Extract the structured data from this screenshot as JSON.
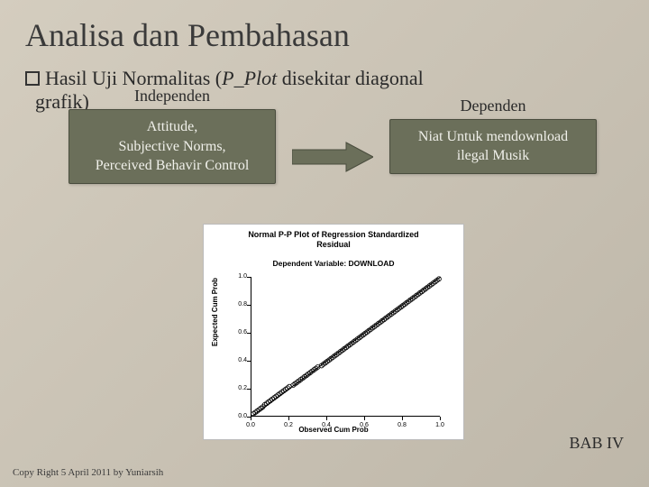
{
  "title": "Analisa dan Pembahasan",
  "subtitle": {
    "prefix": "Hasil Uji Normalitas  (",
    "italic": "P_Plot",
    "suffix": " disekitar diagonal",
    "line2": "grafik)"
  },
  "labels": {
    "independen": "Independen",
    "dependen": "Dependen"
  },
  "box_left": {
    "l1": "Attitude,",
    "l2": "Subjective Norms,",
    "l3": "Perceived Behavir Control"
  },
  "box_right": {
    "l1": "Niat Untuk mendownload",
    "l2": "ilegal Musik"
  },
  "arrow": {
    "fill": "#6b6f5a",
    "stroke": "#4a4d3e"
  },
  "chart": {
    "type": "scatter-with-line",
    "title_l1": "Normal P-P Plot of Regression Standardized",
    "title_l2": "Residual",
    "subtitle": "Dependent Variable: DOWNLOAD",
    "xlabel": "Observed Cum Prob",
    "ylabel": "Expected Cum Prob",
    "xlim": [
      0,
      1
    ],
    "ylim": [
      0,
      1
    ],
    "ticks": [
      "0.0",
      "0.2",
      "0.4",
      "0.6",
      "0.8",
      "1.0"
    ],
    "tick_vals": [
      0,
      0.2,
      0.4,
      0.6,
      0.8,
      1.0
    ],
    "line": {
      "x1": 0,
      "y1": 0,
      "x2": 1,
      "y2": 1,
      "color": "#000000",
      "width": 1
    },
    "marker_color": "#000000",
    "marker_size": 2.5,
    "background_color": "#ffffff",
    "points": [
      [
        0.01,
        0.02
      ],
      [
        0.02,
        0.03
      ],
      [
        0.03,
        0.04
      ],
      [
        0.04,
        0.05
      ],
      [
        0.05,
        0.06
      ],
      [
        0.06,
        0.07
      ],
      [
        0.07,
        0.085
      ],
      [
        0.08,
        0.095
      ],
      [
        0.09,
        0.105
      ],
      [
        0.1,
        0.115
      ],
      [
        0.11,
        0.125
      ],
      [
        0.12,
        0.135
      ],
      [
        0.13,
        0.145
      ],
      [
        0.14,
        0.155
      ],
      [
        0.15,
        0.165
      ],
      [
        0.16,
        0.175
      ],
      [
        0.17,
        0.185
      ],
      [
        0.18,
        0.195
      ],
      [
        0.19,
        0.205
      ],
      [
        0.2,
        0.215
      ],
      [
        0.22,
        0.225
      ],
      [
        0.23,
        0.235
      ],
      [
        0.24,
        0.245
      ],
      [
        0.25,
        0.255
      ],
      [
        0.26,
        0.265
      ],
      [
        0.27,
        0.275
      ],
      [
        0.28,
        0.285
      ],
      [
        0.29,
        0.295
      ],
      [
        0.3,
        0.305
      ],
      [
        0.31,
        0.315
      ],
      [
        0.32,
        0.325
      ],
      [
        0.33,
        0.335
      ],
      [
        0.34,
        0.345
      ],
      [
        0.35,
        0.355
      ],
      [
        0.37,
        0.365
      ],
      [
        0.38,
        0.375
      ],
      [
        0.39,
        0.385
      ],
      [
        0.4,
        0.395
      ],
      [
        0.41,
        0.405
      ],
      [
        0.42,
        0.415
      ],
      [
        0.43,
        0.425
      ],
      [
        0.44,
        0.435
      ],
      [
        0.45,
        0.445
      ],
      [
        0.46,
        0.455
      ],
      [
        0.47,
        0.465
      ],
      [
        0.48,
        0.475
      ],
      [
        0.49,
        0.485
      ],
      [
        0.5,
        0.495
      ],
      [
        0.51,
        0.505
      ],
      [
        0.52,
        0.515
      ],
      [
        0.53,
        0.525
      ],
      [
        0.54,
        0.535
      ],
      [
        0.55,
        0.545
      ],
      [
        0.56,
        0.555
      ],
      [
        0.57,
        0.565
      ],
      [
        0.58,
        0.575
      ],
      [
        0.59,
        0.585
      ],
      [
        0.6,
        0.595
      ],
      [
        0.61,
        0.605
      ],
      [
        0.62,
        0.615
      ],
      [
        0.63,
        0.625
      ],
      [
        0.64,
        0.635
      ],
      [
        0.65,
        0.645
      ],
      [
        0.66,
        0.655
      ],
      [
        0.67,
        0.665
      ],
      [
        0.68,
        0.675
      ],
      [
        0.69,
        0.685
      ],
      [
        0.7,
        0.695
      ],
      [
        0.71,
        0.705
      ],
      [
        0.72,
        0.715
      ],
      [
        0.73,
        0.725
      ],
      [
        0.74,
        0.735
      ],
      [
        0.75,
        0.745
      ],
      [
        0.76,
        0.755
      ],
      [
        0.77,
        0.765
      ],
      [
        0.78,
        0.775
      ],
      [
        0.79,
        0.785
      ],
      [
        0.8,
        0.795
      ],
      [
        0.81,
        0.805
      ],
      [
        0.82,
        0.815
      ],
      [
        0.83,
        0.825
      ],
      [
        0.84,
        0.835
      ],
      [
        0.85,
        0.845
      ],
      [
        0.86,
        0.855
      ],
      [
        0.87,
        0.865
      ],
      [
        0.88,
        0.875
      ],
      [
        0.89,
        0.885
      ],
      [
        0.9,
        0.895
      ],
      [
        0.91,
        0.905
      ],
      [
        0.92,
        0.915
      ],
      [
        0.93,
        0.925
      ],
      [
        0.94,
        0.935
      ],
      [
        0.95,
        0.945
      ],
      [
        0.96,
        0.955
      ],
      [
        0.97,
        0.965
      ],
      [
        0.98,
        0.975
      ],
      [
        0.99,
        0.985
      ]
    ]
  },
  "footer": {
    "bab": "BAB IV",
    "copyright": "Copy Right 5 April 2011 by Yuniarsih"
  }
}
